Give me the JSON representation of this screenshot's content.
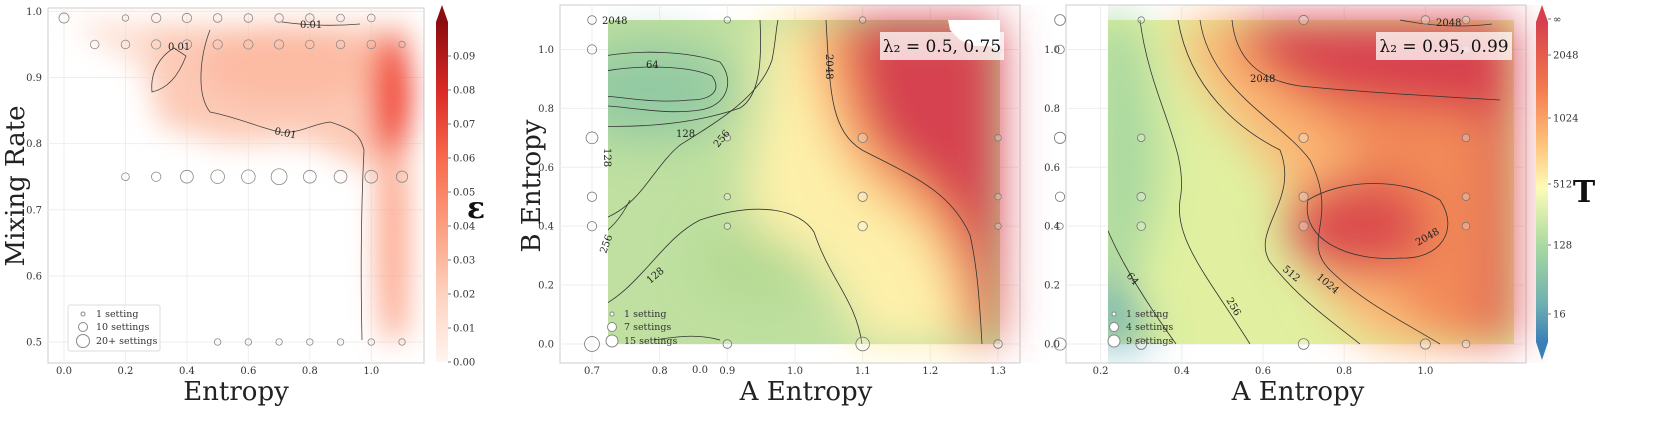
{
  "chart_data": [
    {
      "type": "heatmap",
      "xlabel": "Entropy",
      "ylabel": "Mixing Rate",
      "xlim": [
        -0.12,
        1.15
      ],
      "ylim": [
        0.48,
        1.0
      ],
      "xticks": [
        "0.0",
        "0.2",
        "0.4",
        "0.6",
        "0.8",
        "1.0"
      ],
      "yticks": [
        "0.5",
        "0.6",
        "0.7",
        "0.8",
        "0.9",
        "1.0"
      ],
      "contour_labels": [
        "0.01",
        "0.01",
        "0.01"
      ],
      "colorbar": {
        "title": "ε",
        "range": [
          0.0,
          0.1
        ],
        "ticks": [
          "0.00",
          "0.01",
          "0.02",
          "0.03",
          "0.04",
          "0.05",
          "0.06",
          "0.07",
          "0.08",
          "0.09"
        ],
        "colormap": "Reds",
        "low_color": "#fff5f0",
        "high_color": "#7f0b0b"
      },
      "legend": {
        "placement": "lower-left",
        "entries": [
          "1 setting",
          "10 settings",
          "20+ settings"
        ]
      },
      "points": [
        {
          "x": 0.0,
          "y": 0.99,
          "n": 5
        },
        {
          "x": 0.1,
          "y": 0.95,
          "n": 3
        },
        {
          "x": 0.2,
          "y": 0.99,
          "n": 1
        },
        {
          "x": 0.3,
          "y": 0.99,
          "n": 4
        },
        {
          "x": 0.4,
          "y": 0.99,
          "n": 4
        },
        {
          "x": 0.5,
          "y": 0.99,
          "n": 3
        },
        {
          "x": 0.6,
          "y": 0.99,
          "n": 3
        },
        {
          "x": 0.7,
          "y": 0.99,
          "n": 3
        },
        {
          "x": 0.8,
          "y": 0.99,
          "n": 3
        },
        {
          "x": 0.9,
          "y": 0.99,
          "n": 2
        },
        {
          "x": 1.0,
          "y": 0.99,
          "n": 2
        },
        {
          "x": 0.2,
          "y": 0.95,
          "n": 3
        },
        {
          "x": 0.3,
          "y": 0.95,
          "n": 4
        },
        {
          "x": 0.4,
          "y": 0.95,
          "n": 4
        },
        {
          "x": 0.5,
          "y": 0.95,
          "n": 4
        },
        {
          "x": 0.6,
          "y": 0.95,
          "n": 4
        },
        {
          "x": 0.7,
          "y": 0.95,
          "n": 4
        },
        {
          "x": 0.8,
          "y": 0.95,
          "n": 3
        },
        {
          "x": 0.9,
          "y": 0.95,
          "n": 3
        },
        {
          "x": 1.0,
          "y": 0.95,
          "n": 3
        },
        {
          "x": 1.1,
          "y": 0.95,
          "n": 1
        },
        {
          "x": 0.2,
          "y": 0.75,
          "n": 2
        },
        {
          "x": 0.3,
          "y": 0.75,
          "n": 4
        },
        {
          "x": 0.4,
          "y": 0.75,
          "n": 10
        },
        {
          "x": 0.5,
          "y": 0.75,
          "n": 12
        },
        {
          "x": 0.6,
          "y": 0.75,
          "n": 12
        },
        {
          "x": 0.7,
          "y": 0.75,
          "n": 18
        },
        {
          "x": 0.8,
          "y": 0.75,
          "n": 10
        },
        {
          "x": 0.9,
          "y": 0.75,
          "n": 10
        },
        {
          "x": 1.0,
          "y": 0.75,
          "n": 10
        },
        {
          "x": 1.1,
          "y": 0.75,
          "n": 7
        },
        {
          "x": 0.5,
          "y": 0.5,
          "n": 1
        },
        {
          "x": 0.6,
          "y": 0.5,
          "n": 1
        },
        {
          "x": 0.7,
          "y": 0.5,
          "n": 1
        },
        {
          "x": 0.8,
          "y": 0.5,
          "n": 1
        },
        {
          "x": 0.9,
          "y": 0.5,
          "n": 1
        },
        {
          "x": 1.0,
          "y": 0.5,
          "n": 1
        },
        {
          "x": 1.1,
          "y": 0.5,
          "n": 1
        }
      ]
    },
    {
      "type": "heatmap",
      "xlabel": "A Entropy",
      "ylabel": "B Entropy",
      "annotation": "λ₂ = 0.5, 0.75",
      "xlim": [
        0.68,
        1.32
      ],
      "ylim": [
        -0.05,
        1.15
      ],
      "xticks": [
        "0.7",
        "0.8",
        "0.9",
        "1.0",
        "1.1",
        "1.2",
        "1.3"
      ],
      "xtick_values": [
        0.7,
        0.8,
        0.9,
        1.0,
        1.1,
        1.2,
        1.3
      ],
      "yticks": [
        "0.0",
        "0.2",
        "0.4",
        "0.6",
        "0.8",
        "1.0"
      ],
      "extra_xtick": {
        "label": "0.0",
        "x": 0.75
      },
      "contour_labels": [
        "2048",
        "2048",
        "64",
        "128",
        "128",
        "256",
        "256",
        "128"
      ],
      "legend": {
        "placement": "lower-left",
        "entries": [
          "1 setting",
          "7 settings",
          "15 settings"
        ]
      },
      "points": [
        {
          "x": 0.7,
          "y": 1.1,
          "n": 3
        },
        {
          "x": 0.7,
          "y": 1.0,
          "n": 4
        },
        {
          "x": 0.7,
          "y": 0.7,
          "n": 8
        },
        {
          "x": 0.7,
          "y": 0.5,
          "n": 4
        },
        {
          "x": 0.7,
          "y": 0.4,
          "n": 4
        },
        {
          "x": 0.7,
          "y": 0.0,
          "n": 15
        },
        {
          "x": 0.9,
          "y": 1.1,
          "n": 1
        },
        {
          "x": 0.9,
          "y": 0.7,
          "n": 1
        },
        {
          "x": 0.9,
          "y": 0.5,
          "n": 1
        },
        {
          "x": 0.9,
          "y": 0.4,
          "n": 1
        },
        {
          "x": 0.9,
          "y": 0.0,
          "n": 3
        },
        {
          "x": 1.1,
          "y": 1.1,
          "n": 1
        },
        {
          "x": 1.1,
          "y": 0.7,
          "n": 4
        },
        {
          "x": 1.1,
          "y": 0.5,
          "n": 4
        },
        {
          "x": 1.1,
          "y": 0.4,
          "n": 4
        },
        {
          "x": 1.1,
          "y": 0.0,
          "n": 12
        },
        {
          "x": 1.3,
          "y": 1.0,
          "n": 1
        },
        {
          "x": 1.3,
          "y": 0.7,
          "n": 1
        },
        {
          "x": 1.3,
          "y": 0.5,
          "n": 1
        },
        {
          "x": 1.3,
          "y": 0.4,
          "n": 1
        },
        {
          "x": 1.3,
          "y": 0.0,
          "n": 3
        }
      ]
    },
    {
      "type": "heatmap",
      "xlabel": "A Entropy",
      "ylabel": "",
      "annotation": "λ₂ = 0.95, 0.99",
      "xlim": [
        0.05,
        1.15
      ],
      "ylim": [
        -0.05,
        1.15
      ],
      "xticks": [
        "0.2",
        "0.4",
        "0.6",
        "0.8",
        "1.0"
      ],
      "yticks": [
        "0.0",
        "0.2",
        "0.4",
        "0.6",
        "0.8",
        "1.0"
      ],
      "contour_labels": [
        "2048",
        "2048",
        "2048",
        "64",
        "256",
        "512",
        "1024"
      ],
      "colorbar": {
        "title": "T",
        "scale": "log",
        "ticks": [
          "16",
          "128",
          "512",
          "1024",
          "2048",
          "∞"
        ],
        "colormap": "Spectral_r"
      },
      "legend": {
        "placement": "lower-left",
        "entries": [
          "1 setting",
          "4 settings",
          "9 settings"
        ]
      },
      "points": [
        {
          "x": 0.1,
          "y": 1.1,
          "n": 6
        },
        {
          "x": 0.1,
          "y": 1.0,
          "n": 3
        },
        {
          "x": 0.1,
          "y": 0.7,
          "n": 7
        },
        {
          "x": 0.1,
          "y": 0.5,
          "n": 4
        },
        {
          "x": 0.1,
          "y": 0.4,
          "n": 1
        },
        {
          "x": 0.1,
          "y": 0.0,
          "n": 9
        },
        {
          "x": 0.3,
          "y": 1.1,
          "n": 1
        },
        {
          "x": 0.3,
          "y": 0.7,
          "n": 2
        },
        {
          "x": 0.3,
          "y": 0.5,
          "n": 3
        },
        {
          "x": 0.3,
          "y": 0.4,
          "n": 3
        },
        {
          "x": 0.3,
          "y": 0.0,
          "n": 6
        },
        {
          "x": 0.7,
          "y": 1.1,
          "n": 4
        },
        {
          "x": 0.7,
          "y": 0.7,
          "n": 4
        },
        {
          "x": 0.7,
          "y": 0.5,
          "n": 4
        },
        {
          "x": 0.7,
          "y": 0.4,
          "n": 4
        },
        {
          "x": 0.7,
          "y": 0.0,
          "n": 6
        },
        {
          "x": 1.0,
          "y": 1.1,
          "n": 3
        },
        {
          "x": 1.0,
          "y": 0.0,
          "n": 5
        },
        {
          "x": 1.1,
          "y": 1.1,
          "n": 2
        },
        {
          "x": 1.1,
          "y": 1.0,
          "n": 2
        },
        {
          "x": 1.1,
          "y": 0.7,
          "n": 2
        },
        {
          "x": 1.1,
          "y": 0.5,
          "n": 2
        },
        {
          "x": 1.1,
          "y": 0.4,
          "n": 2
        },
        {
          "x": 1.1,
          "y": 0.0,
          "n": 2
        }
      ]
    }
  ]
}
